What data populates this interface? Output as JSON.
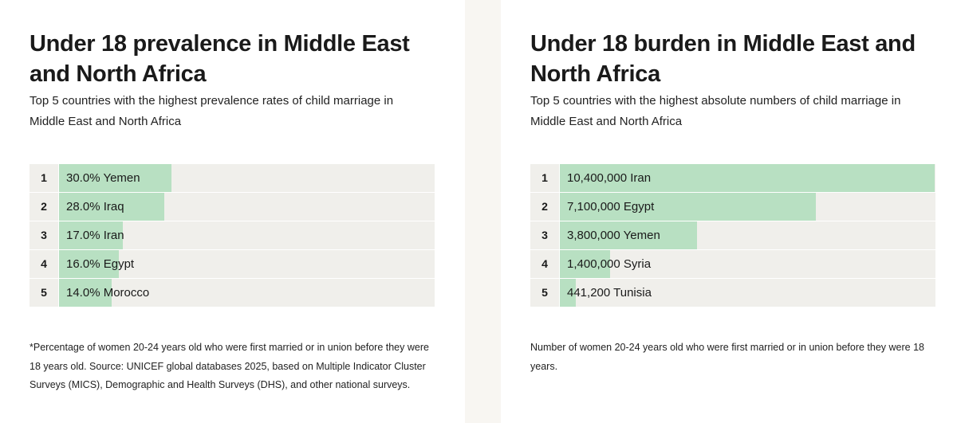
{
  "chart_data": [
    {
      "type": "bar",
      "title": "Under 18 prevalence in Middle East and North Africa",
      "subtitle": "Top 5 countries with the highest prevalence rates of child marriage in Middle East and North Africa",
      "ranks": [
        1,
        2,
        3,
        4,
        5
      ],
      "categories": [
        "Yemen",
        "Iraq",
        "Iran",
        "Egypt",
        "Morocco"
      ],
      "values": [
        30.0,
        28.0,
        17.0,
        16.0,
        14.0
      ],
      "value_labels": [
        "30.0%",
        "28.0%",
        "17.0%",
        "16.0%",
        "14.0%"
      ],
      "xlim": [
        0,
        100
      ],
      "color": "#b8e0c2",
      "footnote": "*Percentage of women 20-24 years old who were first married or in union before they were 18 years old. Source: UNICEF global databases 2025, based on Multiple Indicator Cluster Surveys (MICS), Demographic and Health Surveys (DHS), and other national surveys."
    },
    {
      "type": "bar",
      "title": "Under 18 burden in Middle East and North Africa",
      "subtitle": "Top 5 countries with the highest absolute numbers of child marriage in Middle East and North Africa",
      "ranks": [
        1,
        2,
        3,
        4,
        5
      ],
      "categories": [
        "Iran",
        "Egypt",
        "Yemen",
        "Syria",
        "Tunisia"
      ],
      "values": [
        10400000,
        7100000,
        3800000,
        1400000,
        441200
      ],
      "value_labels": [
        "10,400,000",
        "7,100,000",
        "3,800,000",
        "1,400,000",
        "441,200"
      ],
      "xlim": [
        0,
        10400000
      ],
      "color": "#b8e0c2",
      "footnote": "Number of women 20-24 years old who were first married or in union before they were 18 years."
    }
  ]
}
